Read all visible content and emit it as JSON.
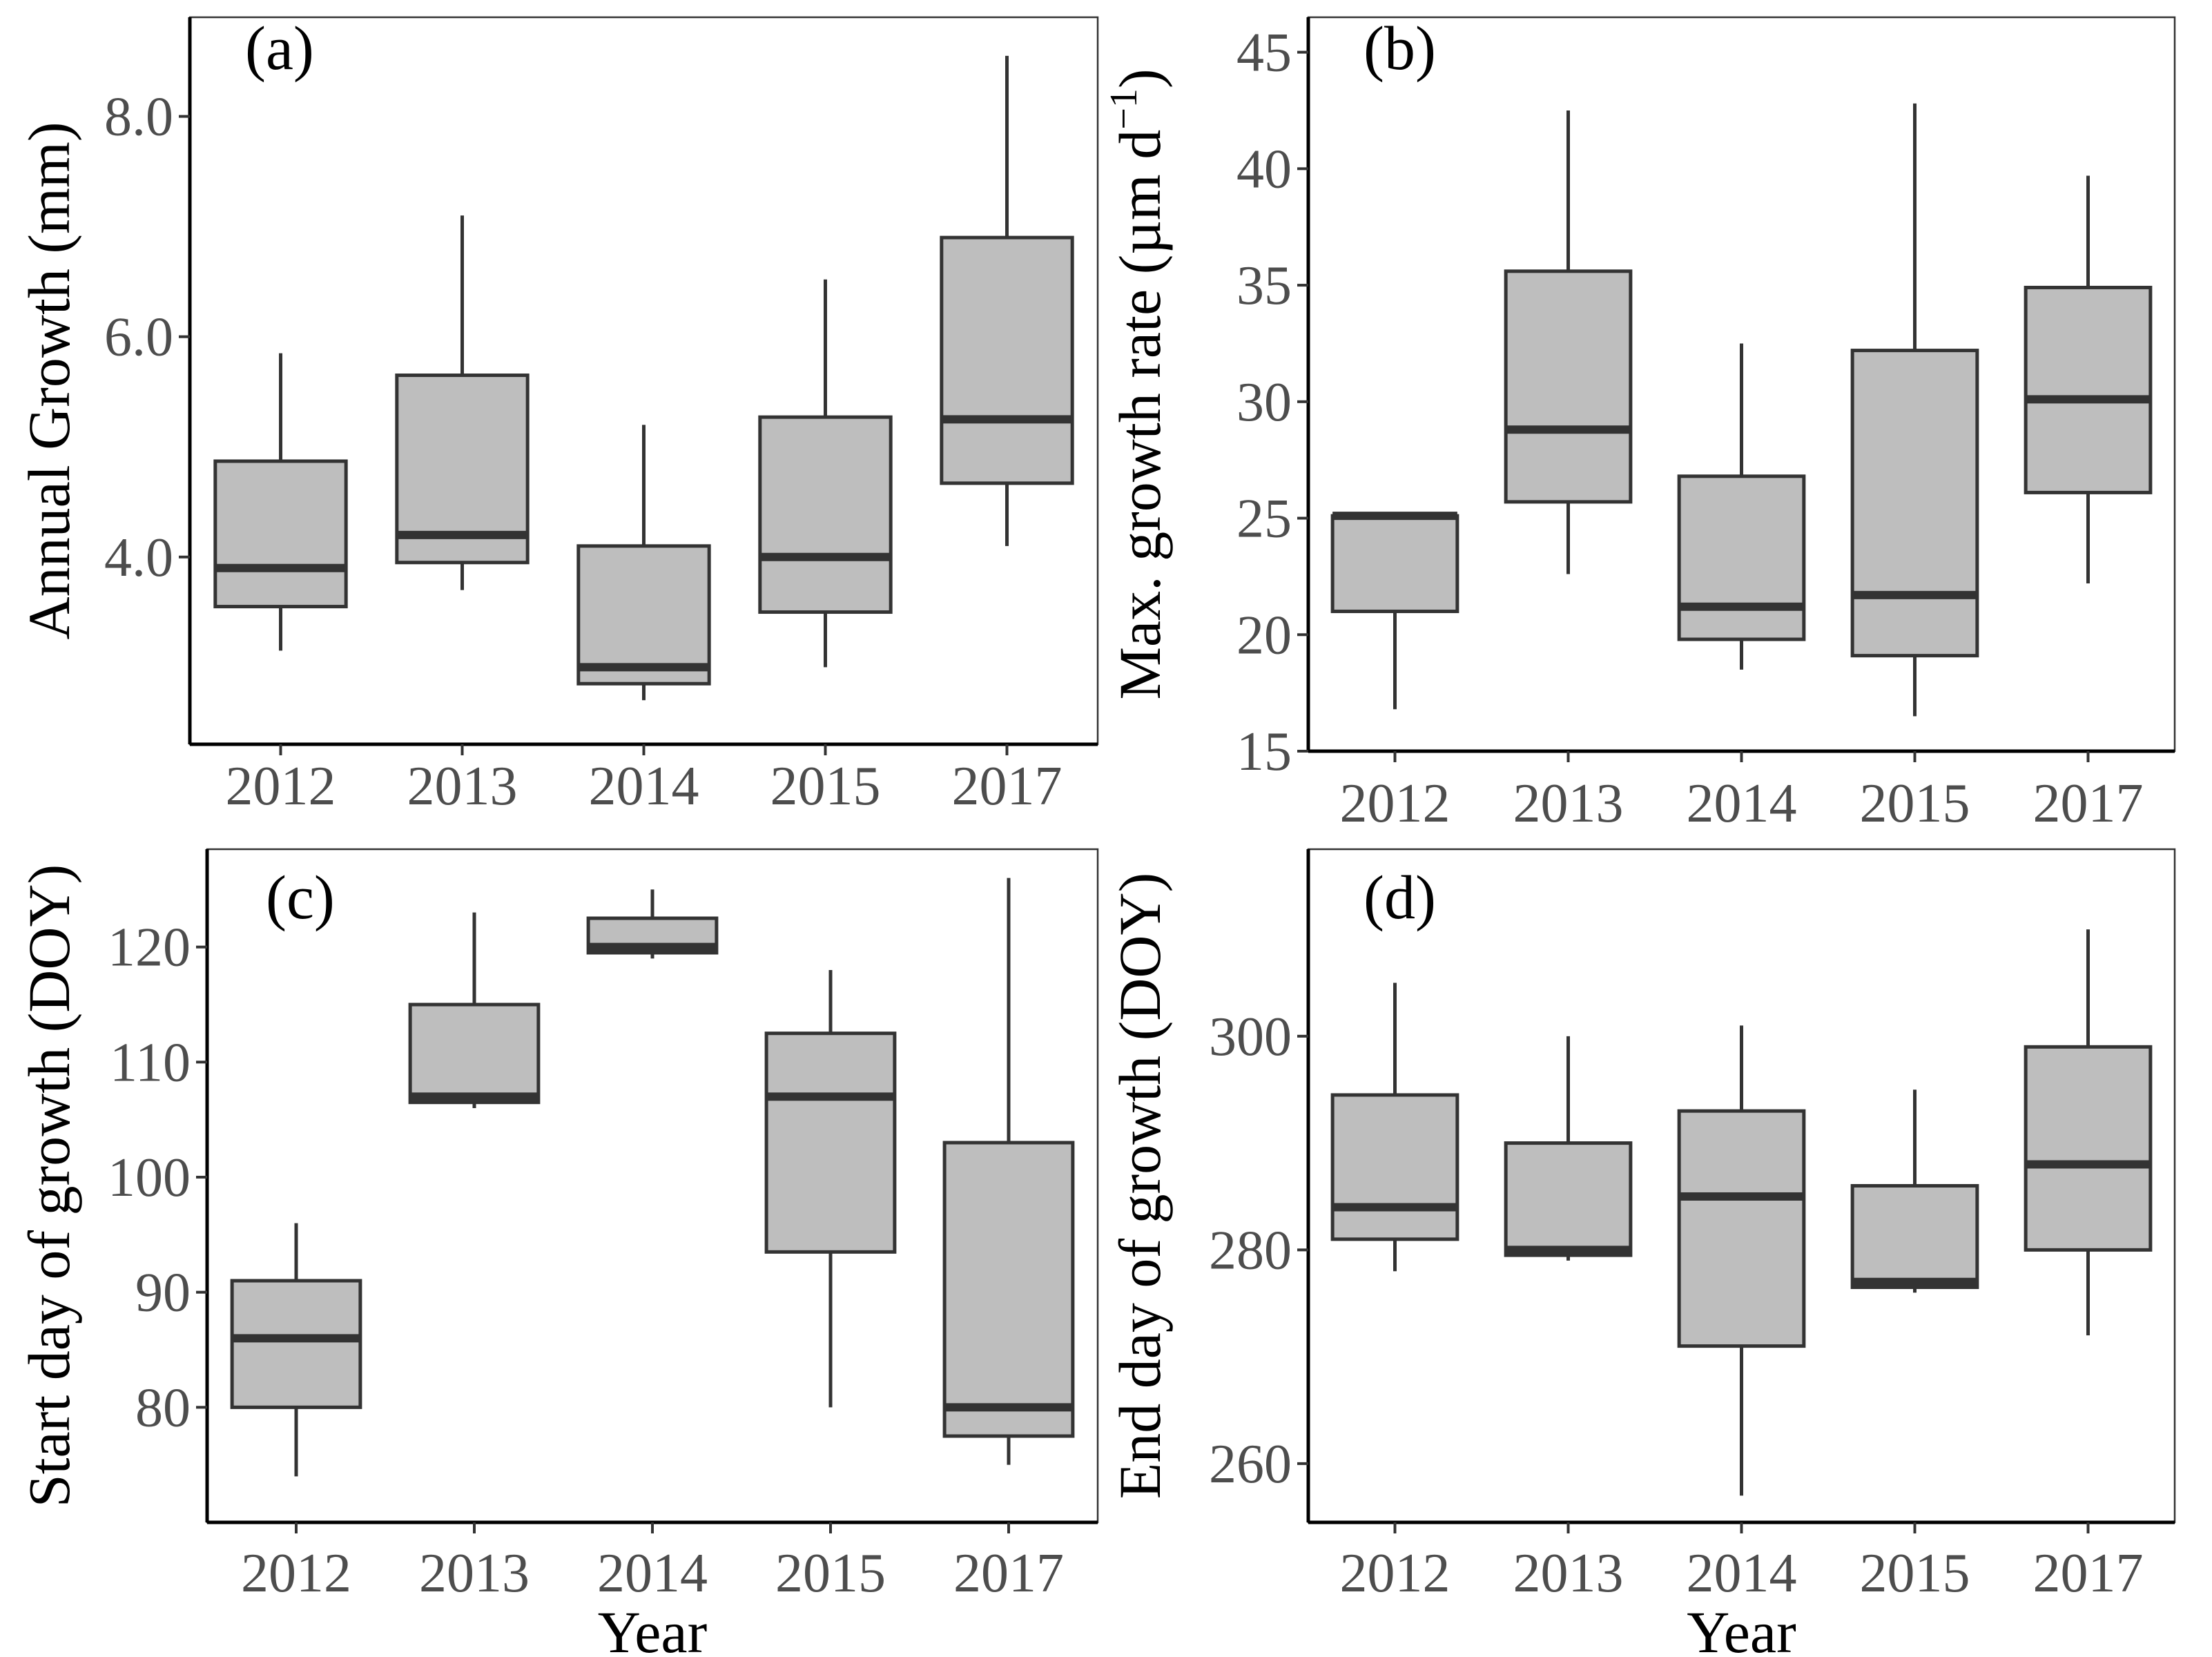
{
  "figure": {
    "xlabel": "Year",
    "colors": {
      "box_fill": "#bebebe",
      "box_stroke": "#333333",
      "tick_text": "#4d4d4d",
      "frame": "#333333"
    }
  },
  "chart_data": [
    {
      "panel": "a",
      "label": "(a)",
      "type": "boxplot",
      "categories": [
        "2012",
        "2013",
        "2014",
        "2015",
        "2017"
      ],
      "ylabel": "Annual Growth (mm)",
      "ylim": [
        2.3,
        8.9
      ],
      "yticks": [
        4.0,
        6.0,
        8.0
      ],
      "ytick_labels": [
        "4.0",
        "6.0",
        "8.0"
      ],
      "boxes": [
        {
          "min": 3.15,
          "q1": 3.55,
          "median": 3.9,
          "q3": 4.87,
          "max": 5.85
        },
        {
          "min": 3.7,
          "q1": 3.95,
          "median": 4.2,
          "q3": 5.65,
          "max": 7.1
        },
        {
          "min": 2.7,
          "q1": 2.85,
          "median": 3.0,
          "q3": 4.1,
          "max": 5.2
        },
        {
          "min": 3.0,
          "q1": 3.5,
          "median": 4.0,
          "q3": 5.27,
          "max": 6.52
        },
        {
          "min": 4.1,
          "q1": 4.67,
          "median": 5.25,
          "q3": 6.9,
          "max": 8.55
        }
      ]
    },
    {
      "panel": "b",
      "label": "(b)",
      "type": "boxplot",
      "categories": [
        "2012",
        "2013",
        "2014",
        "2015",
        "2017"
      ],
      "ylabel_main": "Max. growth rate (µm d",
      "ylabel_sup": "−1",
      "ylabel_end": ")",
      "ylim": [
        15,
        46.5
      ],
      "yticks": [
        15,
        20,
        25,
        30,
        35,
        40,
        45
      ],
      "ytick_labels": [
        "15",
        "20",
        "25",
        "30",
        "35",
        "40",
        "45"
      ],
      "boxes": [
        {
          "min": 16.8,
          "q1": 21.0,
          "median": 25.1,
          "q3": 25.1,
          "max": 25.1
        },
        {
          "min": 22.6,
          "q1": 25.7,
          "median": 28.8,
          "q3": 35.6,
          "max": 42.5
        },
        {
          "min": 18.5,
          "q1": 19.8,
          "median": 21.2,
          "q3": 26.8,
          "max": 32.5
        },
        {
          "min": 16.5,
          "q1": 19.1,
          "median": 21.7,
          "q3": 32.2,
          "max": 42.8
        },
        {
          "min": 22.2,
          "q1": 26.1,
          "median": 30.1,
          "q3": 34.9,
          "max": 39.7
        }
      ]
    },
    {
      "panel": "c",
      "label": "(c)",
      "type": "boxplot",
      "categories": [
        "2012",
        "2013",
        "2014",
        "2015",
        "2017"
      ],
      "ylabel": "Start day of growth (DOY)",
      "xlabel": "Year",
      "ylim": [
        70,
        128.5
      ],
      "yticks": [
        80,
        90,
        100,
        110,
        120
      ],
      "ytick_labels": [
        "80",
        "90",
        "100",
        "110",
        "120"
      ],
      "boxes": [
        {
          "min": 74,
          "q1": 80,
          "median": 86,
          "q3": 91,
          "max": 96
        },
        {
          "min": 106,
          "q1": 106.5,
          "median": 107,
          "q3": 115,
          "max": 123
        },
        {
          "min": 119,
          "q1": 119.5,
          "median": 120,
          "q3": 122.5,
          "max": 125
        },
        {
          "min": 80,
          "q1": 93.5,
          "median": 107,
          "q3": 112.5,
          "max": 118
        },
        {
          "min": 75,
          "q1": 77.5,
          "median": 80,
          "q3": 103,
          "max": 126
        }
      ]
    },
    {
      "panel": "d",
      "label": "(d)",
      "type": "boxplot",
      "categories": [
        "2012",
        "2013",
        "2014",
        "2015",
        "2017"
      ],
      "ylabel": "End day of growth (DOY)",
      "xlabel": "Year",
      "ylim": [
        254.5,
        317.5
      ],
      "yticks": [
        260,
        280,
        300
      ],
      "ytick_labels": [
        "260",
        "280",
        "300"
      ],
      "boxes": [
        {
          "min": 278,
          "q1": 281,
          "median": 284,
          "q3": 294.5,
          "max": 305
        },
        {
          "min": 279,
          "q1": 279.5,
          "median": 280,
          "q3": 290,
          "max": 300
        },
        {
          "min": 257,
          "q1": 271,
          "median": 285,
          "q3": 293,
          "max": 301
        },
        {
          "min": 276,
          "q1": 276.5,
          "median": 277,
          "q3": 286,
          "max": 295
        },
        {
          "min": 272,
          "q1": 280,
          "median": 288,
          "q3": 299,
          "max": 310
        }
      ]
    }
  ]
}
